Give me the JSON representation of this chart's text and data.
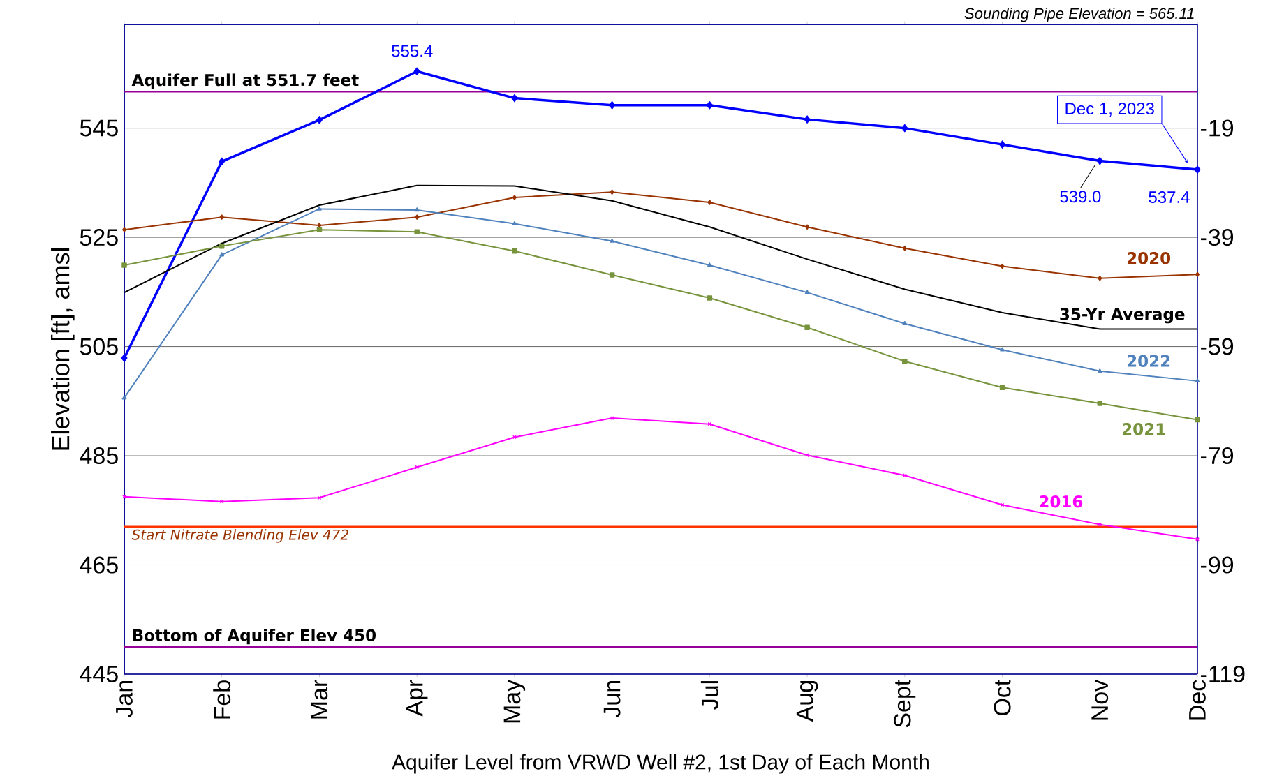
{
  "chart_data": {
    "type": "line",
    "xlabel": "Aquifer Level from VRWD Well #2, 1st Day of Each Month",
    "ylabel": "Elevation [ft], amsl",
    "categories": [
      "Jan",
      "Feb",
      "Mar",
      "Apr",
      "May",
      "Jun",
      "Jul",
      "Aug",
      "Sept",
      "Oct",
      "Nov",
      "Dec"
    ],
    "series": [
      {
        "color": "#0000ff",
        "marker": "diamond",
        "values": [
          502.9,
          538.9,
          546.5,
          555.4,
          550.5,
          549.2,
          549.2,
          546.6,
          545.0,
          542.0,
          539.0,
          537.4
        ],
        "value_labels": [
          null,
          null,
          null,
          "555.4",
          null,
          null,
          null,
          null,
          null,
          null,
          "539.0",
          "537.4"
        ]
      },
      {
        "name": "2020",
        "color": "#993300",
        "marker": "diamond",
        "values": [
          526.4,
          528.7,
          527.2,
          528.7,
          532.3,
          533.3,
          531.4,
          526.9,
          523.0,
          519.7,
          517.5,
          518.2
        ]
      },
      {
        "name": "35-Yr Average",
        "color": "#000000",
        "marker": "none",
        "values": [
          514.9,
          523.9,
          530.9,
          534.5,
          534.4,
          531.7,
          526.9,
          521.0,
          515.5,
          511.2,
          508.2,
          508.2
        ]
      },
      {
        "name": "2022",
        "color": "#4f81bd",
        "marker": "triangle",
        "values": [
          495.6,
          521.8,
          530.2,
          530.0,
          527.5,
          524.3,
          519.9,
          514.9,
          509.2,
          504.4,
          500.5,
          498.7
        ]
      },
      {
        "name": "2021",
        "color": "#77933c",
        "marker": "square",
        "values": [
          519.9,
          523.4,
          526.4,
          526.0,
          522.5,
          518.1,
          513.9,
          508.5,
          502.3,
          497.5,
          494.6,
          491.6
        ]
      },
      {
        "name": "2016",
        "color": "#ff00ff",
        "marker": "cross",
        "values": [
          477.5,
          476.6,
          477.3,
          482.9,
          488.4,
          491.9,
          490.8,
          485.1,
          481.4,
          476.0,
          472.4,
          469.7
        ]
      }
    ],
    "ylim": [
      445,
      564
    ],
    "yticks": [
      445,
      465,
      485,
      505,
      525,
      545
    ],
    "y2lim": [
      -119,
      0
    ],
    "y2ticks": [
      -119,
      -99,
      -79,
      -59,
      -39,
      -19
    ],
    "ref_lines": [
      {
        "axis": "y",
        "value": 551.7,
        "label": "Aquifer Full at 551.7 feet",
        "color": "#990099"
      },
      {
        "axis": "y",
        "value": 472,
        "label": "Start Nitrate Blending Elev 472",
        "color": "#ff3300"
      },
      {
        "axis": "y",
        "value": 450,
        "label": "Bottom of Aquifer Elev 450",
        "color": "#990099"
      }
    ],
    "annotations": [
      "Sounding Pipe Elevation = 565.11",
      "Dec 1, 2023"
    ],
    "grid": "y",
    "line_style": "solid"
  }
}
